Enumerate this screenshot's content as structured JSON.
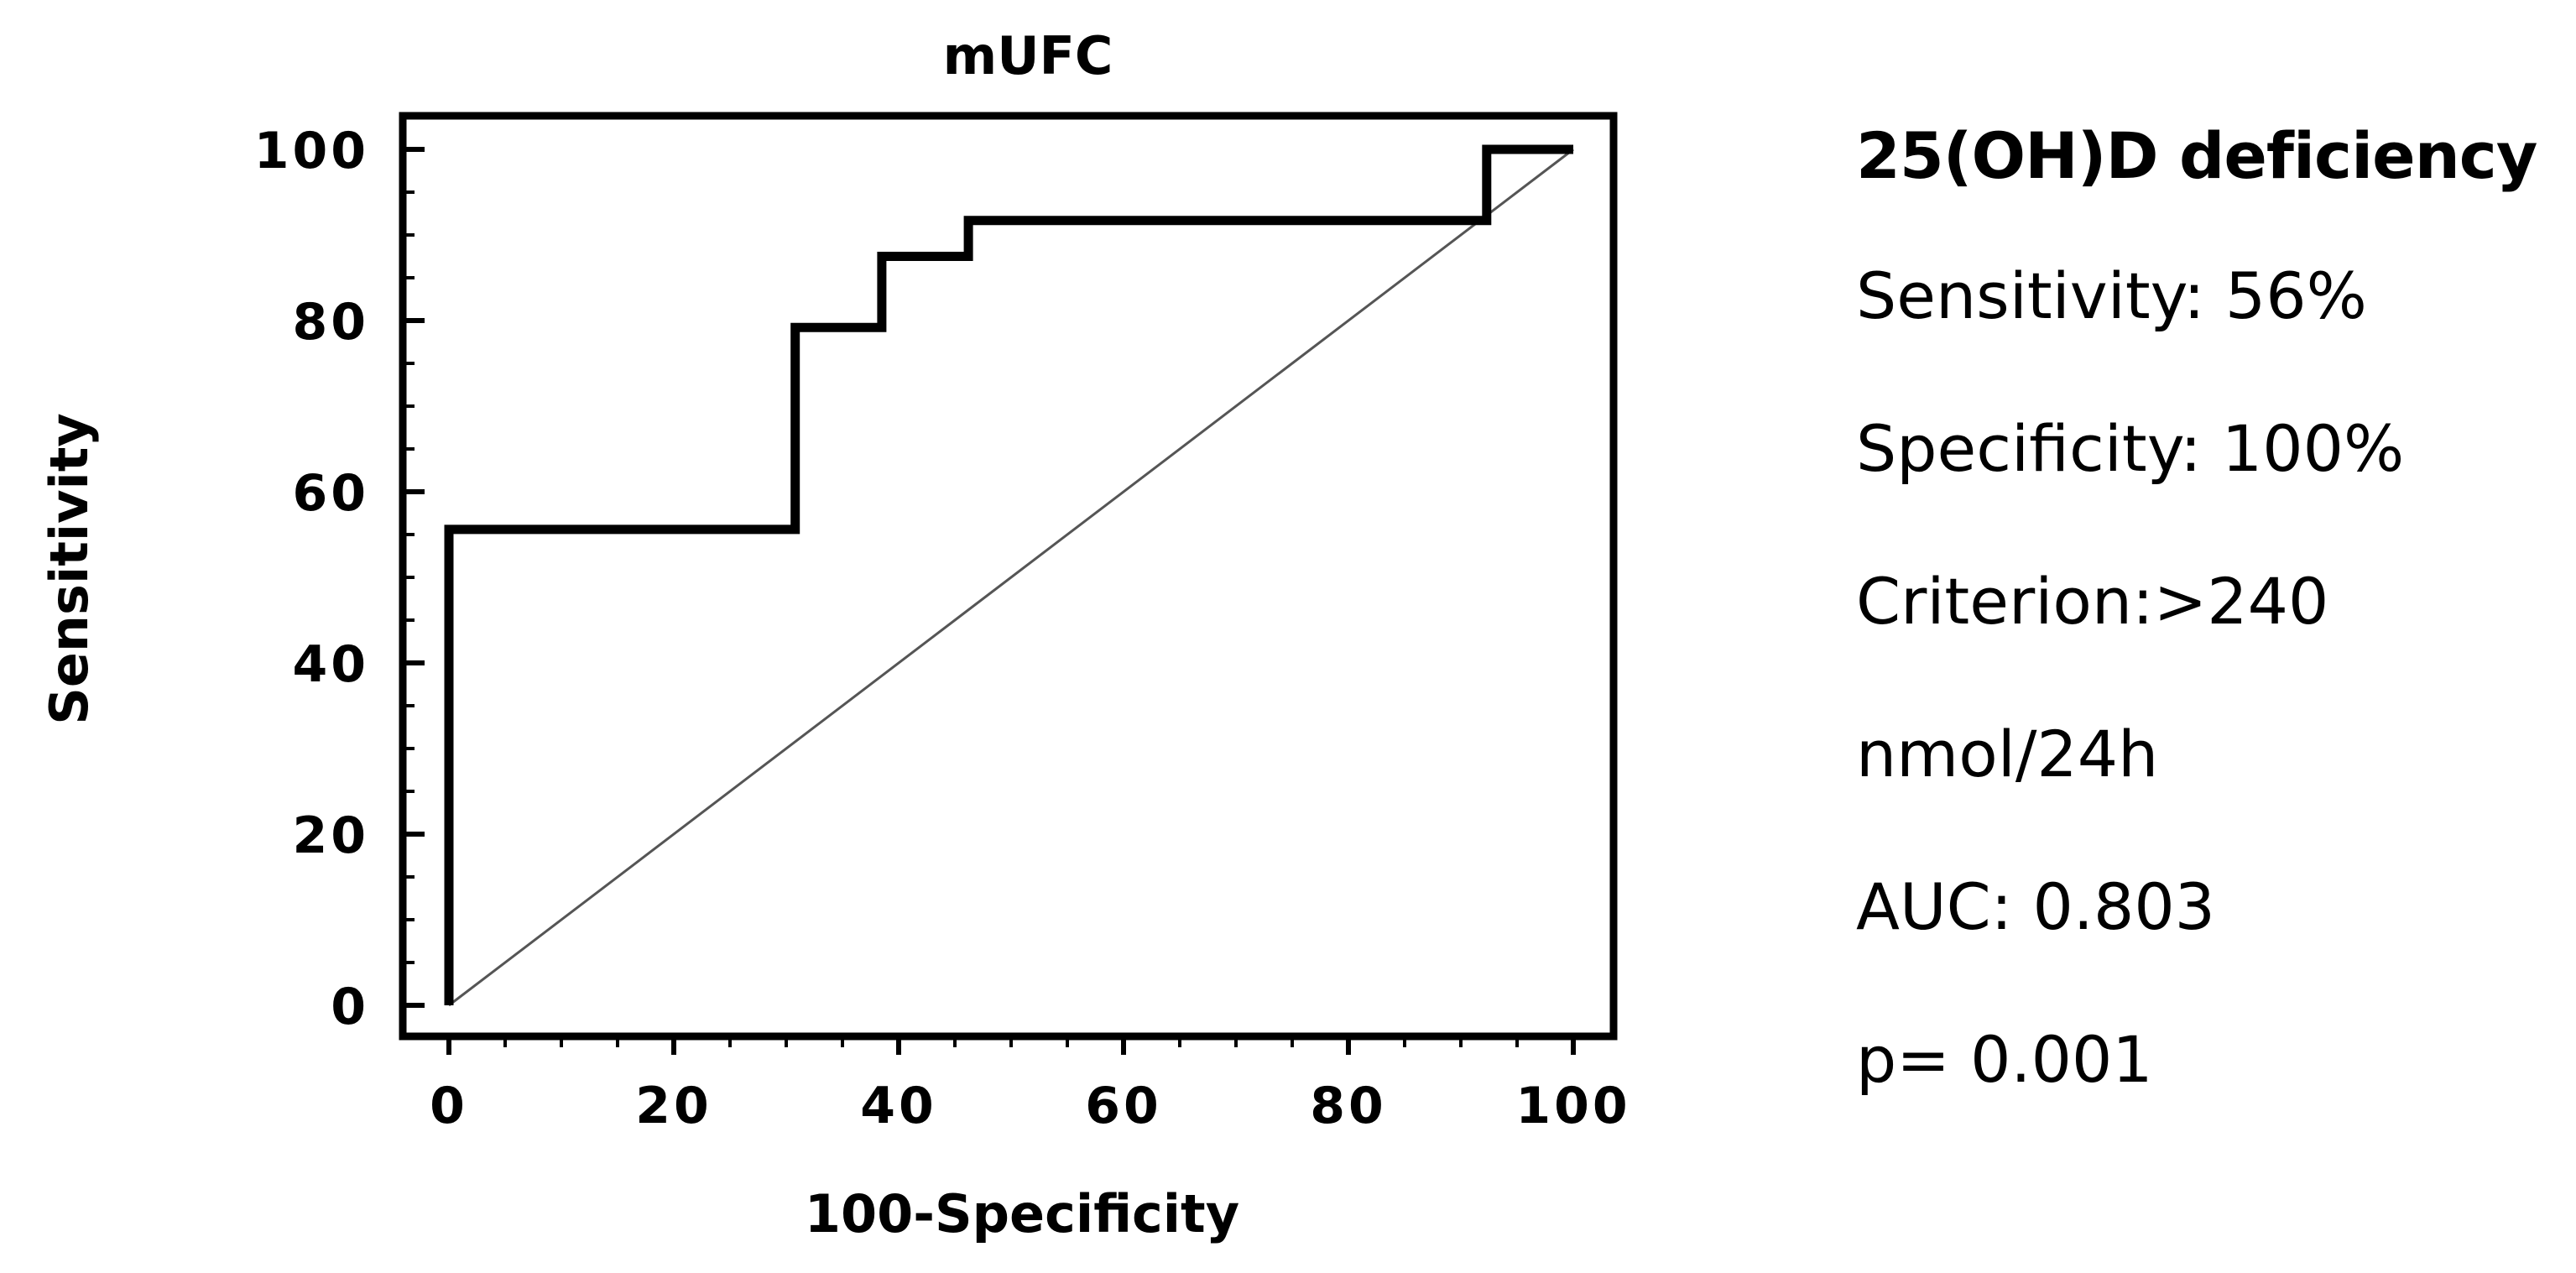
{
  "chart_data": {
    "type": "line",
    "title": "mUFC",
    "xlabel": "100-Specificity",
    "ylabel": "Sensitivity",
    "xlim": [
      0,
      100
    ],
    "ylim": [
      0,
      100
    ],
    "x_ticks": [
      0,
      20,
      40,
      60,
      80,
      100
    ],
    "y_ticks": [
      0,
      20,
      40,
      60,
      80,
      100
    ],
    "minor_tick_step": 5,
    "grid": false,
    "legend": "none",
    "series": [
      {
        "style": "step",
        "color": "#000000",
        "x": [
          0,
          0,
          30.8,
          30.8,
          38.5,
          38.5,
          46.2,
          46.2,
          92.3,
          92.3,
          100
        ],
        "y": [
          0,
          55.6,
          55.6,
          79.2,
          79.2,
          87.5,
          87.5,
          91.7,
          91.7,
          100,
          100
        ]
      },
      {
        "style": "reference-diagonal",
        "color": "#555555",
        "x": [
          0,
          100
        ],
        "y": [
          0,
          100
        ]
      }
    ]
  },
  "stats": {
    "heading": "25(OH)D deficiency",
    "lines": [
      "Sensitivity: 56%",
      "Specificity: 100%",
      "Criterion:>240",
      "nmol/24h",
      "AUC: 0.803",
      "p= 0.001"
    ]
  }
}
